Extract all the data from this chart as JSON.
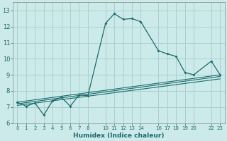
{
  "xlabel": "Humidex (Indice chaleur)",
  "bg_color": "#cdeaea",
  "grid_color": "#a8d0d0",
  "line_color": "#1a6b6b",
  "xlim": [
    -0.5,
    23.5
  ],
  "ylim": [
    6.0,
    13.5
  ],
  "x_ticks": [
    0,
    1,
    2,
    3,
    4,
    5,
    6,
    7,
    8,
    10,
    11,
    12,
    13,
    14,
    16,
    17,
    18,
    19,
    20,
    22,
    23
  ],
  "y_ticks": [
    6,
    7,
    8,
    9,
    10,
    11,
    12,
    13
  ],
  "series1_x": [
    0,
    1,
    2,
    3,
    4,
    5,
    6,
    7,
    8,
    10,
    11,
    12,
    13,
    14,
    16,
    17,
    18,
    19,
    20,
    22,
    23
  ],
  "series1_y": [
    7.3,
    7.05,
    7.25,
    6.5,
    7.4,
    7.6,
    7.05,
    7.75,
    7.7,
    12.2,
    12.8,
    12.45,
    12.5,
    12.3,
    10.5,
    10.3,
    10.15,
    9.15,
    9.0,
    9.85,
    9.0
  ],
  "series2_x": [
    0,
    23
  ],
  "series2_y": [
    7.2,
    8.9
  ],
  "series3_x": [
    0,
    23
  ],
  "series3_y": [
    7.3,
    9.0
  ],
  "series4_x": [
    0,
    23
  ],
  "series4_y": [
    7.1,
    8.75
  ]
}
